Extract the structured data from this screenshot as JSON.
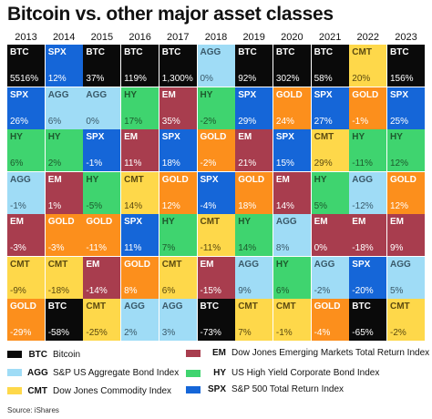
{
  "title": "Bitcoin vs. other major asset classes",
  "source": "Source: iShares",
  "colors": {
    "BTC": "#0a0a0a",
    "AGG": "#9fdcf6",
    "CMT": "#fed84a",
    "EM": "#a83d4e",
    "HY": "#3fd46f",
    "SPX": "#1566d8",
    "GOLD": "#fc8f1c"
  },
  "text_colors": {
    "BTC": "#ffffff",
    "AGG": "#3a5a6a",
    "CMT": "#5b4a10",
    "EM": "#ffffff",
    "HY": "#1d5a2d",
    "SPX": "#ffffff",
    "GOLD": "#ffffff"
  },
  "legend": [
    {
      "code": "BTC",
      "name": "Bitcoin"
    },
    {
      "code": "AGG",
      "name": "S&P US Aggregate Bond Index"
    },
    {
      "code": "CMT",
      "name": "Dow Jones Commodity Index"
    },
    {
      "code": "EM",
      "name": "Dow Jones Emerging Markets Total Return Index"
    },
    {
      "code": "HY",
      "name": "US High Yield Corporate Bond Index"
    },
    {
      "code": "SPX",
      "name": "S&P 500 Total Return Index"
    }
  ],
  "chart_data": {
    "type": "table",
    "title": "Bitcoin vs. other major asset classes",
    "years": [
      "2013",
      "2014",
      "2015",
      "2016",
      "2017",
      "2018",
      "2019",
      "2020",
      "2021",
      "2022",
      "2023"
    ],
    "columns": [
      [
        [
          "BTC",
          "5516%"
        ],
        [
          "SPX",
          "26%"
        ],
        [
          "HY",
          "6%"
        ],
        [
          "AGG",
          "-1%"
        ],
        [
          "EM",
          "-3%"
        ],
        [
          "CMT",
          "-9%"
        ],
        [
          "GOLD",
          "-29%"
        ]
      ],
      [
        [
          "SPX",
          "12%"
        ],
        [
          "AGG",
          "6%"
        ],
        [
          "HY",
          "2%"
        ],
        [
          "EM",
          "1%"
        ],
        [
          "GOLD",
          "-3%"
        ],
        [
          "CMT",
          "-18%"
        ],
        [
          "BTC",
          "-58%"
        ]
      ],
      [
        [
          "BTC",
          "37%"
        ],
        [
          "AGG",
          "0%"
        ],
        [
          "SPX",
          "-1%"
        ],
        [
          "HY",
          "-5%"
        ],
        [
          "GOLD",
          "-11%"
        ],
        [
          "EM",
          "-14%"
        ],
        [
          "CMT",
          "-25%"
        ]
      ],
      [
        [
          "BTC",
          "119%"
        ],
        [
          "HY",
          "17%"
        ],
        [
          "EM",
          "11%"
        ],
        [
          "CMT",
          "14%"
        ],
        [
          "SPX",
          "11%"
        ],
        [
          "GOLD",
          "8%"
        ],
        [
          "AGG",
          "2%"
        ]
      ],
      [
        [
          "BTC",
          "1,300%"
        ],
        [
          "EM",
          "35%"
        ],
        [
          "SPX",
          "18%"
        ],
        [
          "GOLD",
          "12%"
        ],
        [
          "HY",
          "7%"
        ],
        [
          "CMT",
          "6%"
        ],
        [
          "AGG",
          "3%"
        ]
      ],
      [
        [
          "AGG",
          "0%"
        ],
        [
          "HY",
          "-2%"
        ],
        [
          "GOLD",
          "-2%"
        ],
        [
          "SPX",
          "-4%"
        ],
        [
          "CMT",
          "-11%"
        ],
        [
          "EM",
          "-15%"
        ],
        [
          "BTC",
          "-73%"
        ]
      ],
      [
        [
          "BTC",
          "92%"
        ],
        [
          "SPX",
          "29%"
        ],
        [
          "EM",
          "21%"
        ],
        [
          "GOLD",
          "18%"
        ],
        [
          "HY",
          "14%"
        ],
        [
          "AGG",
          "9%"
        ],
        [
          "CMT",
          "7%"
        ]
      ],
      [
        [
          "BTC",
          "302%"
        ],
        [
          "GOLD",
          "24%"
        ],
        [
          "SPX",
          "15%"
        ],
        [
          "EM",
          "14%"
        ],
        [
          "AGG",
          "8%"
        ],
        [
          "HY",
          "6%"
        ],
        [
          "CMT",
          "-1%"
        ]
      ],
      [
        [
          "BTC",
          "58%"
        ],
        [
          "SPX",
          "27%"
        ],
        [
          "CMT",
          "29%"
        ],
        [
          "HY",
          "5%"
        ],
        [
          "EM",
          "0%"
        ],
        [
          "AGG",
          "-2%"
        ],
        [
          "GOLD",
          "-4%"
        ]
      ],
      [
        [
          "CMT",
          "20%"
        ],
        [
          "GOLD",
          "-1%"
        ],
        [
          "HY",
          "-11%"
        ],
        [
          "AGG",
          "-12%"
        ],
        [
          "EM",
          "-18%"
        ],
        [
          "SPX",
          "-20%"
        ],
        [
          "BTC",
          "-65%"
        ]
      ],
      [
        [
          "BTC",
          "156%"
        ],
        [
          "SPX",
          "25%"
        ],
        [
          "HY",
          "12%"
        ],
        [
          "GOLD",
          "12%"
        ],
        [
          "EM",
          "9%"
        ],
        [
          "AGG",
          "5%"
        ],
        [
          "CMT",
          "-2%"
        ]
      ]
    ]
  }
}
